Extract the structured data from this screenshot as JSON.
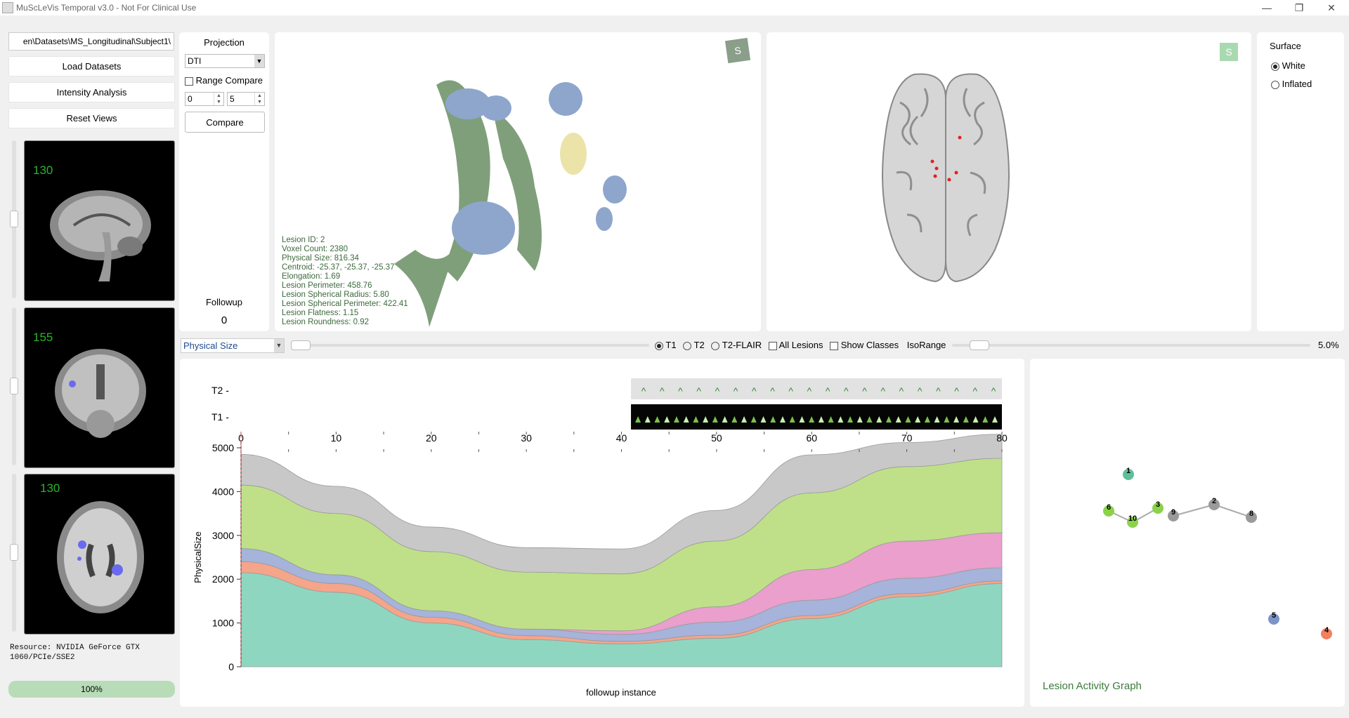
{
  "window": {
    "title": "MuScLeVis Temporal v3.0 - Not For Clinical Use",
    "minimize": "—",
    "restore": "❐",
    "close": "✕"
  },
  "left": {
    "path_value": "en\\Datasets\\MS_Longitudinal\\Subject1\\",
    "load_button": "Load Datasets",
    "intensity_button": "Intensity Analysis",
    "reset_button": "Reset Views",
    "slices": [
      {
        "num": "130"
      },
      {
        "num": "155"
      },
      {
        "num": "130"
      }
    ],
    "resource": "Resource: NVIDIA GeForce GTX\n1060/PCIe/SSE2",
    "progress": "100%",
    "progress_value": 1.0
  },
  "projection": {
    "label": "Projection",
    "select_value": "DTI",
    "range_compare": "Range Compare",
    "spin_from": "0",
    "spin_to": "5",
    "compare_button": "Compare",
    "followup_label": "Followup",
    "followup_value": "0"
  },
  "lesion_info": [
    "Lesion ID: 2",
    "Voxel Count: 2380",
    "Physical Size: 816.34",
    "Centroid: -25.37, -25.37, -25.37",
    "Elongation: 1.69",
    "Lesion Perimeter: 458.76",
    "Lesion Spherical Radius: 5.80",
    "Lesion Spherical Perimeter: 422.41",
    "Lesion Flatness: 1.15",
    "Lesion Roundness: 0.92"
  ],
  "surface": {
    "label": "Surface",
    "white": "White",
    "inflated": "Inflated"
  },
  "controls": {
    "metric_select": "Physical Size",
    "t1": "T1",
    "t2": "T2",
    "t2flair": "T2-FLAIR",
    "all_lesions": "All Lesions",
    "show_classes": "Show Classes",
    "isorange": "IsoRange",
    "isorange_value": "5.0%"
  },
  "colors": {
    "lesion_green": "#7f9f7a",
    "lesion_blue": "#8ea6cc",
    "lesion_yellow": "#ece3a8",
    "accent_green": "#2bb32b",
    "progress": "#b8dcb8"
  },
  "chart_data": {
    "type": "area",
    "xlabel": "followup instance",
    "ylabel": "PhysicalSize",
    "xlim": [
      0,
      80
    ],
    "ylim": [
      0,
      5000
    ],
    "x_ticks": [
      0,
      10,
      20,
      30,
      40,
      50,
      60,
      70,
      80
    ],
    "y_ticks": [
      0,
      1000,
      2000,
      3000,
      4000,
      5000
    ],
    "row_labels": [
      "T2 -",
      "T1 -"
    ],
    "x": [
      0,
      10,
      20,
      30,
      40,
      50,
      60,
      70,
      80
    ],
    "series": [
      {
        "color": "#8fd6c0",
        "values": [
          2150,
          1700,
          1000,
          620,
          520,
          650,
          1100,
          1600,
          1900
        ]
      },
      {
        "color": "#f5a58a",
        "values": [
          250,
          200,
          130,
          90,
          60,
          70,
          70,
          70,
          60
        ]
      },
      {
        "color": "#a6b3da",
        "values": [
          300,
          200,
          150,
          150,
          160,
          300,
          350,
          350,
          300
        ]
      },
      {
        "color": "#ea9fcc",
        "values": [
          0,
          0,
          0,
          0,
          80,
          350,
          700,
          850,
          800
        ]
      },
      {
        "color": "#bfe089",
        "values": [
          1450,
          1400,
          1350,
          1300,
          1300,
          1500,
          1750,
          1700,
          1700
        ]
      },
      {
        "color": "#c8c8c8",
        "values": [
          700,
          620,
          560,
          560,
          570,
          700,
          870,
          550,
          550
        ]
      }
    ]
  },
  "graph": {
    "title": "Lesion Activity Graph",
    "nodes": [
      {
        "id": "1",
        "color": "#5fbf98"
      },
      {
        "id": "6",
        "color": "#8bd24a"
      },
      {
        "id": "3",
        "color": "#8bd24a"
      },
      {
        "id": "10",
        "color": "#8bd24a"
      },
      {
        "id": "9",
        "color": "#9a9a9a"
      },
      {
        "id": "2",
        "color": "#9a9a9a"
      },
      {
        "id": "8",
        "color": "#9a9a9a"
      },
      {
        "id": "5",
        "color": "#7d93c9"
      },
      {
        "id": "4",
        "color": "#f0805f"
      }
    ]
  }
}
